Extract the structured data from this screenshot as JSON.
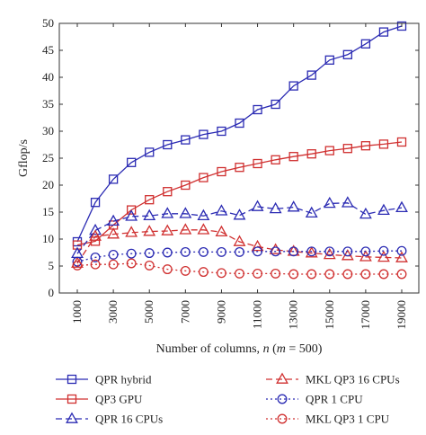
{
  "chart_data": {
    "type": "line",
    "xlabel_parts": [
      "Number of columns, ",
      "n",
      " (",
      "m",
      " = 500)"
    ],
    "ylabel": "Gflop/s",
    "xlim": [
      1000,
      19000
    ],
    "ylim": [
      0,
      50
    ],
    "x_ticks": [
      1000,
      3000,
      5000,
      7000,
      9000,
      11000,
      13000,
      15000,
      17000,
      19000
    ],
    "y_ticks": [
      0,
      5,
      10,
      15,
      20,
      25,
      30,
      35,
      40,
      45,
      50
    ],
    "grid": false,
    "legend_placement": "bottom",
    "x": [
      1000,
      2000,
      3000,
      4000,
      5000,
      6000,
      7000,
      8000,
      9000,
      10000,
      11000,
      12000,
      13000,
      14000,
      15000,
      16000,
      17000,
      18000,
      19000
    ],
    "series": [
      {
        "name": "QPR hybrid",
        "color": "#2b2bb3",
        "marker": "square",
        "line": "solid",
        "values": [
          9.5,
          16.8,
          21.1,
          24.2,
          26.1,
          27.5,
          28.4,
          29.4,
          30.0,
          31.5,
          34.0,
          35.0,
          38.4,
          40.4,
          43.2,
          44.2,
          46.2,
          48.4,
          49.5
        ]
      },
      {
        "name": "QP3 GPU",
        "color": "#d03030",
        "marker": "square",
        "line": "solid",
        "values": [
          8.9,
          9.6,
          12.6,
          15.4,
          17.3,
          18.8,
          20.0,
          21.4,
          22.5,
          23.3,
          24.0,
          24.7,
          25.3,
          25.8,
          26.4,
          26.8,
          27.3,
          27.6,
          28.0
        ]
      },
      {
        "name": "QPR 16 CPUs",
        "color": "#2b2bb3",
        "marker": "triangle",
        "line": "dashed",
        "values": [
          7.3,
          11.6,
          13.3,
          14.2,
          14.3,
          14.7,
          14.7,
          14.3,
          15.2,
          14.4,
          16.0,
          15.6,
          15.9,
          14.8,
          16.6,
          16.7,
          14.6,
          15.3,
          15.8
        ]
      },
      {
        "name": "MKL QP3 16 CPUs",
        "color": "#d03030",
        "marker": "triangle",
        "line": "dashed",
        "values": [
          5.5,
          10.5,
          10.9,
          11.2,
          11.4,
          11.5,
          11.7,
          11.7,
          11.3,
          9.5,
          8.6,
          8.0,
          7.7,
          7.4,
          7.1,
          6.9,
          6.7,
          6.6,
          6.5
        ]
      },
      {
        "name": "QPR 1 CPU",
        "color": "#2b2bb3",
        "marker": "circle",
        "line": "dotted",
        "values": [
          5.8,
          6.6,
          7.1,
          7.3,
          7.4,
          7.5,
          7.6,
          7.6,
          7.6,
          7.6,
          7.7,
          7.7,
          7.7,
          7.7,
          7.7,
          7.7,
          7.7,
          7.8,
          7.8
        ]
      },
      {
        "name": "MKL QP3 1 CPU",
        "color": "#d03030",
        "marker": "circle",
        "line": "dotted",
        "values": [
          5.1,
          5.3,
          5.3,
          5.5,
          5.1,
          4.4,
          4.1,
          3.9,
          3.7,
          3.6,
          3.6,
          3.6,
          3.5,
          3.5,
          3.5,
          3.5,
          3.5,
          3.5,
          3.5
        ]
      }
    ]
  }
}
